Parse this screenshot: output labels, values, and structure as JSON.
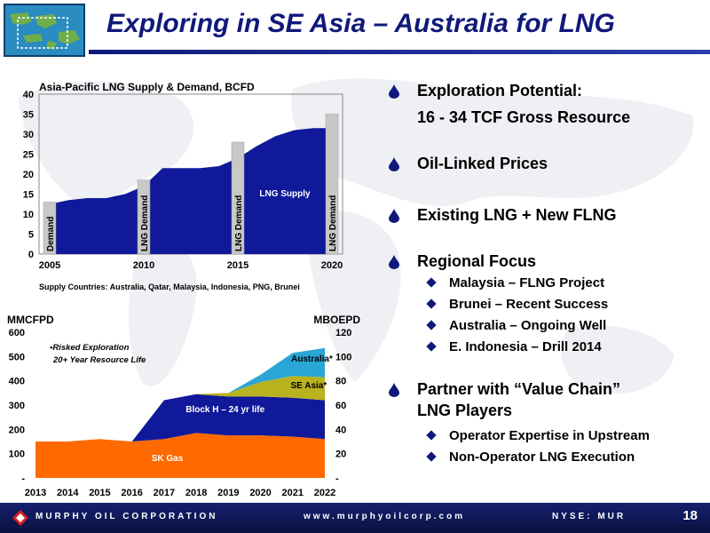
{
  "slide": {
    "title": "Exploring in SE Asia – Australia for LNG",
    "page_number": "18"
  },
  "chart_data": [
    {
      "type": "area",
      "title": "Asia-Pacific LNG Supply & Demand, BCFD",
      "ylim": [
        0,
        40
      ],
      "yticks": [
        "0",
        "5",
        "10",
        "15",
        "20",
        "25",
        "30",
        "35",
        "40"
      ],
      "xticks": [
        "2005",
        "2010",
        "2015",
        "2020"
      ],
      "series": [
        {
          "name": "LNG Supply",
          "x": [
            2005,
            2006,
            2007,
            2008,
            2009,
            2010,
            2011,
            2012,
            2013,
            2014,
            2015,
            2016,
            2017,
            2018,
            2019,
            2020
          ],
          "values": [
            12.5,
            13.5,
            14,
            14,
            15,
            17,
            21.5,
            21.5,
            21.5,
            22,
            24,
            27,
            29.5,
            31,
            31.5,
            31.5
          ]
        },
        {
          "name": "Demand",
          "type": "bar",
          "x": [
            2005,
            2010,
            2015,
            2020
          ],
          "values": [
            13,
            18.5,
            28,
            35
          ],
          "labels": [
            "Demand",
            "LNG Demand",
            "LNG Demand",
            "LNG Demand"
          ]
        }
      ],
      "footnote": "Supply Countries:  Australia, Qatar, Malaysia, Indonesia, PNG, Brunei"
    },
    {
      "type": "area",
      "ylabel_left": "MMCFPD",
      "ylabel_right": "MBOEPD",
      "ylim": [
        0,
        600
      ],
      "ylim_right": [
        0,
        120
      ],
      "yticks_left": [
        "-",
        "100",
        "200",
        "300",
        "400",
        "500",
        "600"
      ],
      "yticks_right": [
        "-",
        "20",
        "40",
        "60",
        "80",
        "100",
        "120"
      ],
      "categories": [
        "2013",
        "2014",
        "2015",
        "2016",
        "2017",
        "2018",
        "2019",
        "2020",
        "2021",
        "2022"
      ],
      "series": [
        {
          "name": "SK Gas",
          "values": [
            150,
            150,
            160,
            150,
            160,
            185,
            175,
            175,
            170,
            160
          ]
        },
        {
          "name": "Block H – 24 yr life",
          "values": [
            0,
            0,
            0,
            0,
            160,
            160,
            160,
            160,
            160,
            160
          ]
        },
        {
          "name": "SE Asia*",
          "values": [
            0,
            0,
            0,
            0,
            0,
            0,
            15,
            60,
            90,
            95
          ]
        },
        {
          "name": "Australia*",
          "values": [
            0,
            0,
            0,
            0,
            0,
            0,
            0,
            30,
            95,
            120
          ]
        }
      ],
      "annotation": [
        "•Risked Exploration",
        "20+ Year Resource Life"
      ],
      "colors": [
        "#ff6a00",
        "#10199a",
        "#b8b21e",
        "#2aa6d6"
      ]
    }
  ],
  "bullets": [
    {
      "text": "Exploration Potential:",
      "sub": "16 - 34 TCF Gross Resource"
    },
    {
      "text": "Oil-Linked Prices"
    },
    {
      "text": "Existing LNG + New FLNG"
    },
    {
      "text": "Regional Focus",
      "items": [
        "Malaysia – FLNG Project",
        "Brunei – Recent Success",
        "Australia – Ongoing Well",
        "E. Indonesia – Drill 2014"
      ]
    },
    {
      "text": "Partner with “Value Chain”",
      "text2": "LNG Players",
      "items": [
        "Operator Expertise in Upstream",
        "Non-Operator LNG Execution"
      ]
    }
  ],
  "footer": {
    "company": "MURPHY OIL CORPORATION",
    "website": "www.murphyoilcorp.com",
    "ticker": "NYSE: MUR"
  },
  "colors": {
    "navy": "#10197a",
    "supply": "#10199a",
    "demand_bar": "#c8c8c8"
  }
}
